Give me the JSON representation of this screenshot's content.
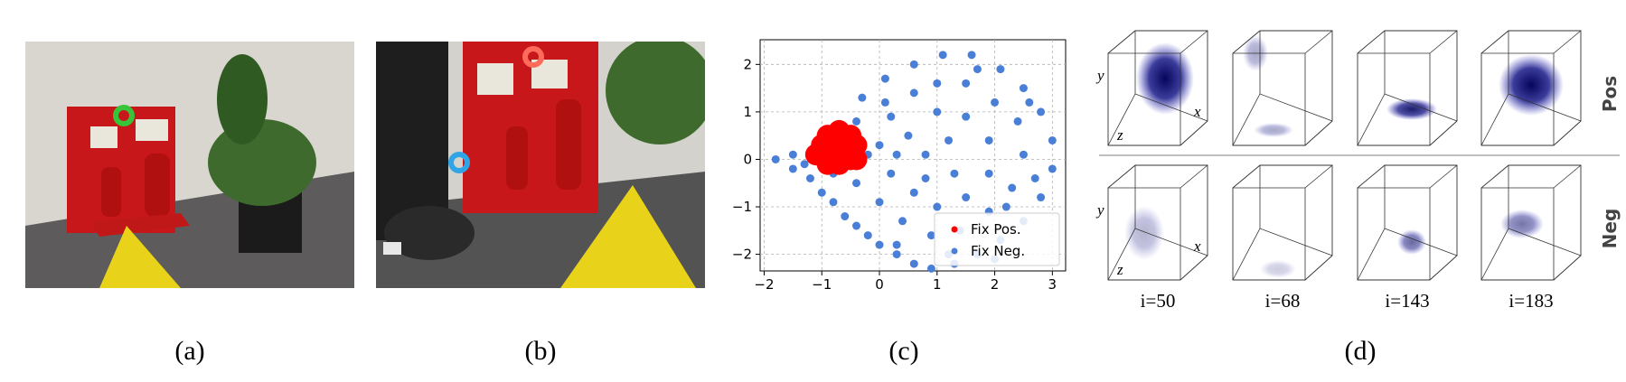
{
  "panels": [
    {
      "label": "(a)"
    },
    {
      "label": "(b)"
    },
    {
      "label": "(c)"
    },
    {
      "label": "(d)"
    }
  ],
  "chart_data": {
    "type": "scatter",
    "xlim": [
      -2.07,
      3.23
    ],
    "ylim": [
      -2.35,
      2.52
    ],
    "xticks": [
      {
        "value": -2,
        "label": "−2"
      },
      {
        "value": -1,
        "label": "−1"
      },
      0,
      1,
      2,
      3
    ],
    "yticks": [
      {
        "value": -2,
        "label": "−2"
      },
      {
        "value": -1,
        "label": "−1"
      },
      0,
      1,
      2
    ],
    "grid": true,
    "legend": "lower right",
    "series": [
      {
        "name": "Fix Pos.",
        "color": "#ff0000",
        "x": [
          -1.1,
          -1.0,
          -0.9,
          -0.7,
          -0.5,
          -0.4,
          -0.5,
          -0.7,
          -0.9,
          -0.8,
          -0.6,
          -0.4
        ],
        "y": [
          0.1,
          0.3,
          0.5,
          0.6,
          0.5,
          0.3,
          0,
          -0.1,
          -0.1,
          0.2,
          0.3,
          0.0
        ]
      },
      {
        "name": "Fix Neg.",
        "color": "#4a7fd8",
        "x": [
          -1.8,
          -1.5,
          -1.5,
          -1.2,
          -1.0,
          -0.8,
          -0.6,
          -0.4,
          -0.2,
          0,
          0.3,
          0.6,
          0.9,
          1.3,
          1.7,
          2.1,
          2.5,
          2.8,
          3.0,
          3.0,
          2.8,
          2.5,
          2.1,
          1.6,
          1.1,
          0.6,
          0.1,
          -0.3,
          -0.4,
          -0.5,
          0.2,
          0.6,
          1.0,
          1.5,
          2.0,
          2.4,
          2.5,
          2.3,
          1.9,
          1.4,
          0.9,
          0.4,
          0,
          -0.4,
          0.2,
          0.6,
          1.0,
          1.5,
          1.9,
          1.9,
          1.5,
          1.0,
          0.5,
          0.3,
          0.8,
          1.2,
          1.3,
          0.8,
          2.2,
          -0.8,
          -1.3,
          0.0,
          2.7,
          2.6,
          0.3,
          1.2,
          2.0,
          1.7,
          0.1,
          -0.2
        ],
        "y": [
          0,
          0.1,
          -0.2,
          -0.4,
          -0.7,
          -0.9,
          -1.2,
          -1.4,
          -1.6,
          -1.8,
          -2.0,
          -2.2,
          -2.3,
          -2.2,
          -2.0,
          -1.7,
          -1.3,
          -0.8,
          -0.2,
          0.4,
          1.0,
          1.5,
          1.9,
          2.2,
          2.2,
          2.0,
          1.7,
          1.3,
          0.8,
          0.4,
          0.9,
          1.4,
          1.6,
          1.6,
          1.2,
          0.8,
          0.1,
          -0.6,
          -1.1,
          -1.5,
          -1.6,
          -1.3,
          -0.9,
          -0.5,
          -0.3,
          -0.7,
          -1.0,
          -0.8,
          -0.3,
          0.4,
          0.9,
          1.0,
          0.5,
          0.1,
          0.1,
          0.4,
          -0.3,
          -0.4,
          -1.0,
          -0.3,
          -0.1,
          0.3,
          -0.4,
          1.2,
          -1.8,
          -2.0,
          -2.1,
          1.9,
          1.2,
          0.1
        ]
      }
    ]
  },
  "heatmaps": {
    "row_labels": [
      "Pos",
      "Neg"
    ],
    "columns": [
      "i=50",
      "i=68",
      "i=143",
      "i=183"
    ],
    "axis_labels": [
      "y",
      "z",
      "x"
    ]
  }
}
